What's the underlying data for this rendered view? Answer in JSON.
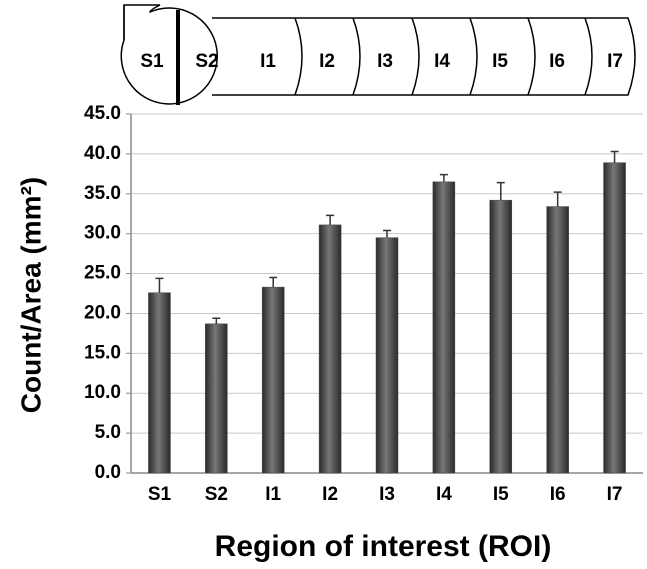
{
  "diagram": {
    "labels": [
      "S1",
      "S2",
      "I1",
      "I2",
      "I3",
      "I4",
      "I5",
      "I6",
      "I7"
    ]
  },
  "chart_data": {
    "type": "bar",
    "ylabel": "Count/Area (mm²)",
    "xlabel": "Region of interest (ROI)",
    "categories": [
      "S1",
      "S2",
      "I1",
      "I2",
      "I3",
      "I4",
      "I5",
      "I6",
      "I7"
    ],
    "values": [
      22.6,
      18.7,
      23.3,
      31.1,
      29.5,
      36.5,
      34.2,
      33.4,
      38.9
    ],
    "errors": [
      1.8,
      0.7,
      1.2,
      1.2,
      0.9,
      0.9,
      2.2,
      1.8,
      1.4
    ],
    "color": "#4a4a4a",
    "ylim": [
      0,
      45
    ],
    "yticks": [
      {
        "value": 0,
        "label": "0.0"
      },
      {
        "value": 5,
        "label": "5.0"
      },
      {
        "value": 10,
        "label": "10.0"
      },
      {
        "value": 15,
        "label": "15.0"
      },
      {
        "value": 20,
        "label": "20.0"
      },
      {
        "value": 25,
        "label": "25.0"
      },
      {
        "value": 30,
        "label": "30.0"
      },
      {
        "value": 35,
        "label": "35.0"
      },
      {
        "value": 40,
        "label": "40.0"
      },
      {
        "value": 45,
        "label": "45.0"
      }
    ],
    "grid": true
  }
}
